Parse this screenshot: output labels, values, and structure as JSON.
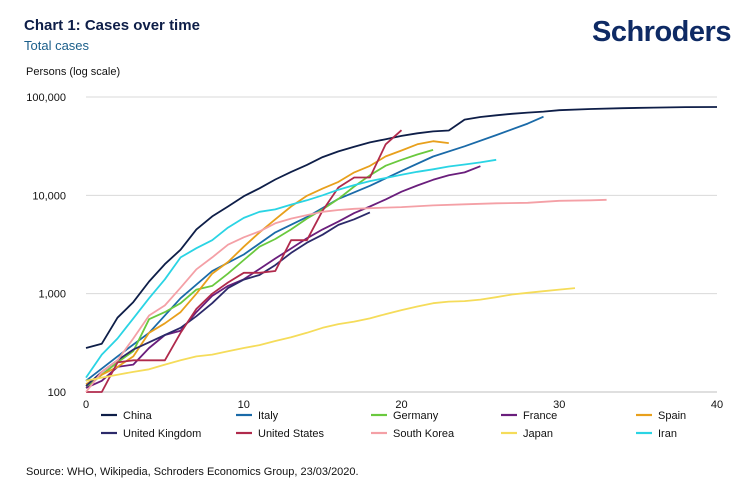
{
  "header": {
    "title": "Chart 1: Cases over time",
    "subtitle": "Total cases",
    "logo": "Schroders"
  },
  "footer": {
    "source": "Source: WHO, Wikipedia, Schroders Economics Group, 23/03/2020."
  },
  "chart_data": {
    "type": "line",
    "title": "Chart 1: Cases over time",
    "subtitle": "Total cases",
    "ylabel": "Persons (log scale)",
    "xlabel": "",
    "yscale": "log",
    "xlim": [
      0,
      40
    ],
    "ylim": [
      100,
      100000
    ],
    "x_ticks": [
      "0",
      "10",
      "20",
      "30",
      "40"
    ],
    "y_ticks": [
      "100",
      "1,000",
      "10,000",
      "100,000"
    ],
    "x_tick_values": [
      0,
      10,
      20,
      30,
      40
    ],
    "y_tick_values": [
      100,
      1000,
      10000,
      100000
    ],
    "grid": "horizontal",
    "legend_position": "bottom",
    "series": [
      {
        "name": "China",
        "color": "#0e1e48",
        "x": [
          0,
          1,
          2,
          3,
          4,
          5,
          6,
          7,
          8,
          9,
          10,
          11,
          12,
          13,
          14,
          15,
          16,
          17,
          18,
          19,
          20,
          21,
          22,
          23,
          24,
          25,
          26,
          27,
          28,
          29,
          30,
          32,
          34,
          36,
          38,
          40
        ],
        "y": [
          280,
          310,
          570,
          820,
          1330,
          2000,
          2800,
          4500,
          6100,
          7700,
          9800,
          11800,
          14500,
          17300,
          20400,
          24500,
          28000,
          31200,
          34500,
          37200,
          40200,
          42700,
          44700,
          45600,
          58900,
          62600,
          65200,
          67500,
          69400,
          71100,
          73400,
          75500,
          77000,
          78100,
          78900,
          79200
        ]
      },
      {
        "name": "Italy",
        "color": "#1a6aa8",
        "x": [
          0,
          2,
          4,
          6,
          8,
          10,
          12,
          14,
          16,
          18,
          20,
          22,
          24,
          26,
          28,
          29
        ],
        "y": [
          130,
          230,
          400,
          900,
          1700,
          2500,
          4200,
          6000,
          9200,
          12500,
          17700,
          24800,
          31500,
          41000,
          53600,
          63000
        ]
      },
      {
        "name": "Germany",
        "color": "#6ac93e",
        "x": [
          0,
          1,
          2,
          3,
          4,
          5,
          6,
          7,
          8,
          9,
          10,
          11,
          12,
          13,
          14,
          15,
          16,
          17,
          18,
          19,
          20,
          21,
          22
        ],
        "y": [
          110,
          150,
          200,
          260,
          550,
          650,
          800,
          1100,
          1200,
          1600,
          2200,
          3000,
          3600,
          4500,
          5800,
          7200,
          9200,
          12300,
          16000,
          20000,
          23000,
          26000,
          29000
        ]
      },
      {
        "name": "France",
        "color": "#6a1e7c",
        "x": [
          0,
          1,
          2,
          3,
          4,
          5,
          6,
          7,
          8,
          9,
          10,
          11,
          12,
          13,
          14,
          15,
          16,
          17,
          18,
          19,
          20,
          21,
          22,
          23,
          24,
          25
        ],
        "y": [
          110,
          130,
          180,
          190,
          280,
          380,
          420,
          650,
          950,
          1200,
          1400,
          1780,
          2280,
          2880,
          3660,
          4500,
          5400,
          6600,
          7700,
          9100,
          10900,
          12600,
          14400,
          16000,
          17100,
          19800
        ]
      },
      {
        "name": "Spain",
        "color": "#e8a01c",
        "x": [
          0,
          1,
          2,
          3,
          4,
          5,
          6,
          7,
          8,
          9,
          10,
          11,
          12,
          13,
          14,
          15,
          16,
          17,
          18,
          19,
          20,
          21,
          22,
          23
        ],
        "y": [
          120,
          150,
          180,
          230,
          400,
          500,
          650,
          1000,
          1600,
          2100,
          3000,
          4200,
          5700,
          7700,
          9900,
          11700,
          13700,
          17100,
          19900,
          24900,
          28600,
          33000,
          35500,
          34000
        ]
      },
      {
        "name": "United Kingdom",
        "color": "#2c2a6a",
        "x": [
          0,
          1,
          2,
          3,
          4,
          5,
          6,
          7,
          8,
          9,
          10,
          11,
          12,
          13,
          14,
          15,
          16,
          17,
          18
        ],
        "y": [
          115,
          160,
          210,
          270,
          320,
          380,
          450,
          590,
          800,
          1140,
          1390,
          1550,
          1950,
          2600,
          3300,
          3980,
          5000,
          5700,
          6700
        ]
      },
      {
        "name": "United States",
        "color": "#b02a4c",
        "x": [
          0,
          1,
          2,
          3,
          4,
          5,
          6,
          7,
          8,
          9,
          10,
          11,
          12,
          13,
          14,
          15,
          16,
          17,
          18,
          19,
          20
        ],
        "y": [
          100,
          100,
          200,
          210,
          210,
          210,
          400,
          700,
          1000,
          1300,
          1630,
          1630,
          1700,
          3500,
          3500,
          7000,
          12000,
          15200,
          15200,
          33000,
          46000
        ]
      },
      {
        "name": "South Korea",
        "color": "#f4a0a6",
        "x": [
          0,
          1,
          2,
          3,
          4,
          5,
          6,
          7,
          8,
          9,
          10,
          11,
          12,
          13,
          14,
          15,
          16,
          17,
          18,
          19,
          20,
          22,
          24,
          26,
          28,
          30,
          32,
          33
        ],
        "y": [
          100,
          160,
          210,
          350,
          600,
          760,
          1150,
          1770,
          2340,
          3150,
          3740,
          4300,
          5200,
          5800,
          6300,
          6800,
          7100,
          7300,
          7400,
          7500,
          7600,
          7900,
          8100,
          8300,
          8400,
          8800,
          8900,
          9000
        ]
      },
      {
        "name": "Japan",
        "color": "#f5dc5a",
        "x": [
          0,
          1,
          2,
          3,
          4,
          5,
          6,
          7,
          8,
          9,
          10,
          11,
          12,
          13,
          14,
          15,
          16,
          17,
          18,
          19,
          20,
          21,
          22,
          23,
          24,
          25,
          26,
          27,
          28,
          29,
          30,
          31
        ],
        "y": [
          130,
          140,
          150,
          160,
          170,
          190,
          210,
          230,
          240,
          260,
          280,
          300,
          330,
          360,
          400,
          450,
          490,
          520,
          560,
          620,
          680,
          740,
          800,
          830,
          840,
          870,
          920,
          980,
          1020,
          1060,
          1100,
          1140
        ]
      },
      {
        "name": "Iran",
        "color": "#2ad4e4",
        "x": [
          0,
          1,
          2,
          3,
          4,
          5,
          6,
          7,
          8,
          9,
          10,
          11,
          12,
          13,
          14,
          15,
          16,
          17,
          18,
          19,
          20,
          21,
          22,
          23,
          24,
          25,
          26
        ],
        "y": [
          140,
          240,
          350,
          560,
          900,
          1400,
          2340,
          2900,
          3500,
          4700,
          5900,
          6800,
          7200,
          8040,
          8900,
          10000,
          11400,
          12700,
          13940,
          14990,
          16170,
          17360,
          18400,
          19640,
          20600,
          21600,
          23000
        ]
      }
    ]
  }
}
